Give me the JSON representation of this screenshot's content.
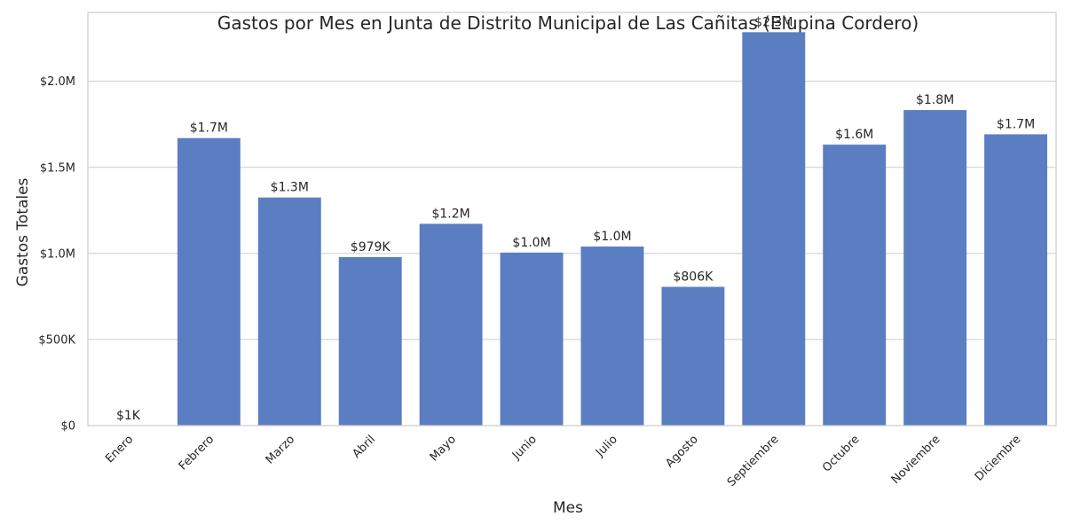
{
  "chart_data": {
    "type": "bar",
    "title": "Gastos por Mes en Junta de Distrito Municipal de Las Cañitas (Elupina Cordero)",
    "xlabel": "Mes",
    "ylabel": "Gastos Totales",
    "categories": [
      "Enero",
      "Febrero",
      "Marzo",
      "Abril",
      "Mayo",
      "Junio",
      "Julio",
      "Agosto",
      "Septiembre",
      "Octubre",
      "Noviembre",
      "Diciembre"
    ],
    "values": [
      1000,
      1670000,
      1325000,
      979000,
      1172000,
      1005000,
      1040000,
      806000,
      2285000,
      1632000,
      1833000,
      1692000
    ],
    "data_labels": [
      "$1K",
      "$1.7M",
      "$1.3M",
      "$979K",
      "$1.2M",
      "$1.0M",
      "$1.0M",
      "$806K",
      "$2.3M",
      "$1.6M",
      "$1.8M",
      "$1.7M"
    ],
    "yticks": [
      0,
      500000,
      1000000,
      1500000,
      2000000
    ],
    "ytick_labels": [
      "$0",
      "$500K",
      "$1.0M",
      "$1.5M",
      "$2.0M"
    ],
    "ylim": [
      0,
      2400000
    ],
    "grid": "horizontal",
    "legend": "none",
    "bar_color": "#5b7ec2",
    "grid_color": "#cccccc",
    "frame_color": "#cccccc"
  }
}
